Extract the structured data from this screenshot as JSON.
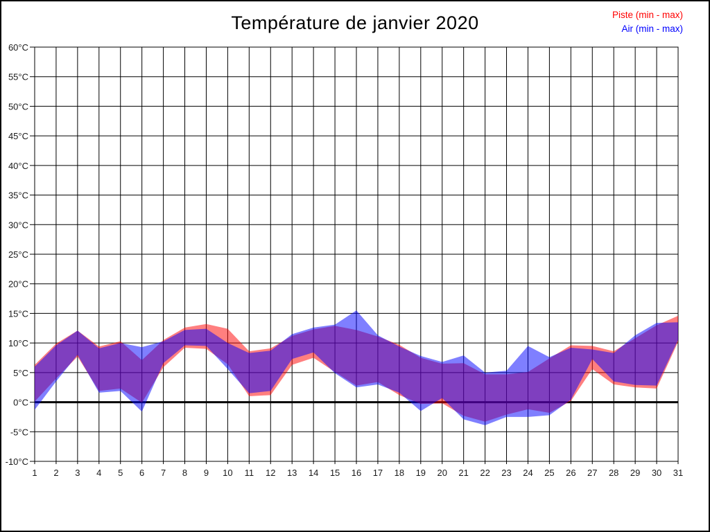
{
  "figure": {
    "background": "#ffffff",
    "border_color": "#000000"
  },
  "chart_data": {
    "type": "area",
    "title": "Température de janvier 2020",
    "xlabel": "",
    "ylabel": "",
    "x": [
      1,
      2,
      3,
      4,
      5,
      6,
      7,
      8,
      9,
      10,
      11,
      12,
      13,
      14,
      15,
      16,
      17,
      18,
      19,
      20,
      21,
      22,
      23,
      24,
      25,
      26,
      27,
      28,
      29,
      30,
      31
    ],
    "ylim": [
      -10,
      60
    ],
    "ytick_step": 5,
    "ytick_suffix": "°C",
    "grid": true,
    "zero_line": true,
    "legend_position": "top-right",
    "band_opacity": 0.5,
    "series": [
      {
        "name": "Piste (min - max)",
        "color": "#ff0000",
        "min": [
          0.1,
          4.0,
          7.7,
          1.9,
          2.3,
          -0.1,
          5.9,
          9.2,
          9.0,
          6.4,
          1.0,
          1.2,
          6.3,
          7.5,
          5.1,
          2.8,
          3.4,
          1.2,
          -0.3,
          -0.2,
          -2.3,
          -3.3,
          -2.1,
          -1.2,
          -1.8,
          0.2,
          5.6,
          3.0,
          2.5,
          2.3,
          10.2
        ],
        "max": [
          6.3,
          9.9,
          12.1,
          9.4,
          10.3,
          7.1,
          10.5,
          12.6,
          13.2,
          12.4,
          8.6,
          9.1,
          11.2,
          12.3,
          12.9,
          12.2,
          11.1,
          9.7,
          7.5,
          6.5,
          6.6,
          4.7,
          4.7,
          5.1,
          7.4,
          9.6,
          9.5,
          8.6,
          10.8,
          13.0,
          14.6
        ]
      },
      {
        "name": "Air (min - max)",
        "color": "#0000ff",
        "min": [
          -1.3,
          3.5,
          8.0,
          1.6,
          1.9,
          -1.6,
          6.6,
          9.6,
          9.5,
          5.6,
          1.5,
          1.9,
          7.3,
          8.4,
          4.9,
          2.5,
          3.0,
          1.6,
          -1.5,
          0.7,
          -2.9,
          -3.9,
          -2.5,
          -2.5,
          -2.2,
          0.4,
          7.3,
          3.5,
          2.9,
          2.8,
          10.5
        ],
        "max": [
          6.0,
          9.6,
          12.1,
          9.1,
          10.0,
          9.3,
          10.3,
          12.2,
          12.4,
          10.0,
          8.3,
          8.7,
          11.5,
          12.6,
          13.1,
          15.5,
          11.3,
          9.4,
          7.8,
          6.8,
          7.9,
          5.0,
          5.3,
          9.5,
          7.6,
          9.2,
          8.9,
          8.3,
          11.3,
          13.4,
          13.5
        ]
      }
    ]
  }
}
